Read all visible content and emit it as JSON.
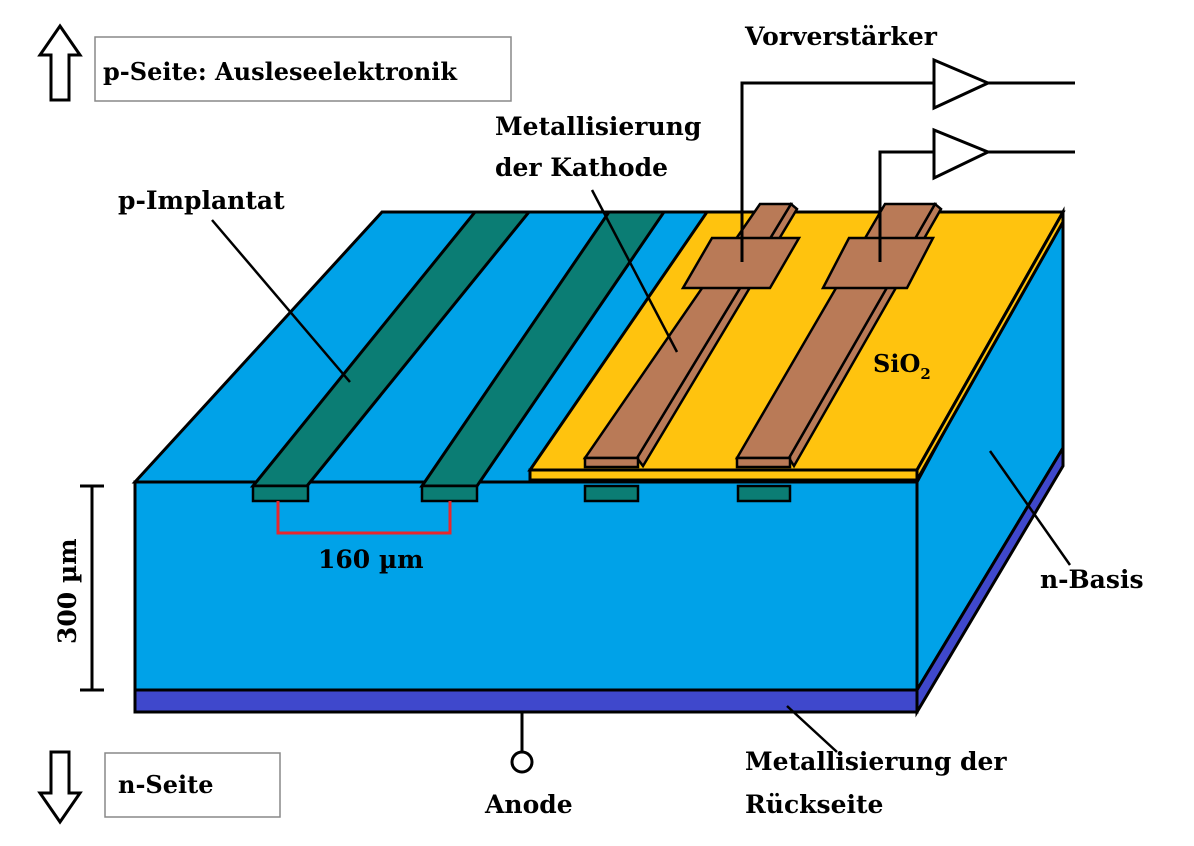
{
  "colors": {
    "n_bulk": "#00a2e8",
    "p_implant": "#0b7d74",
    "sio2": "#ffc30e",
    "metal_cathode": "#b97a57",
    "back_metal": "#3f48cc",
    "dimension_160": "#e8262b",
    "outline": "#000000"
  },
  "labels": {
    "p_side": "p-Seite: Ausleseelektronik",
    "n_side": "n-Seite",
    "preamp": "Vorverstärker",
    "cathode_metal_line1": "Metallisierung",
    "cathode_metal_line2": "der Kathode",
    "p_implant": "p-Implantat",
    "sio2_main": "SiO",
    "sio2_sub": "2",
    "n_base": "n-Basis",
    "thickness": "300 µm",
    "pitch": "160 µm",
    "anode": "Anode",
    "back_metal_line1": "Metallisierung der",
    "back_metal_line2": "Rückseite"
  },
  "icons": {
    "up_arrow": "arrow-up-icon",
    "down_arrow": "arrow-down-icon",
    "preamp_symbol": "amplifier-triangle-icon",
    "anode_terminal": "terminal-circle-icon"
  }
}
